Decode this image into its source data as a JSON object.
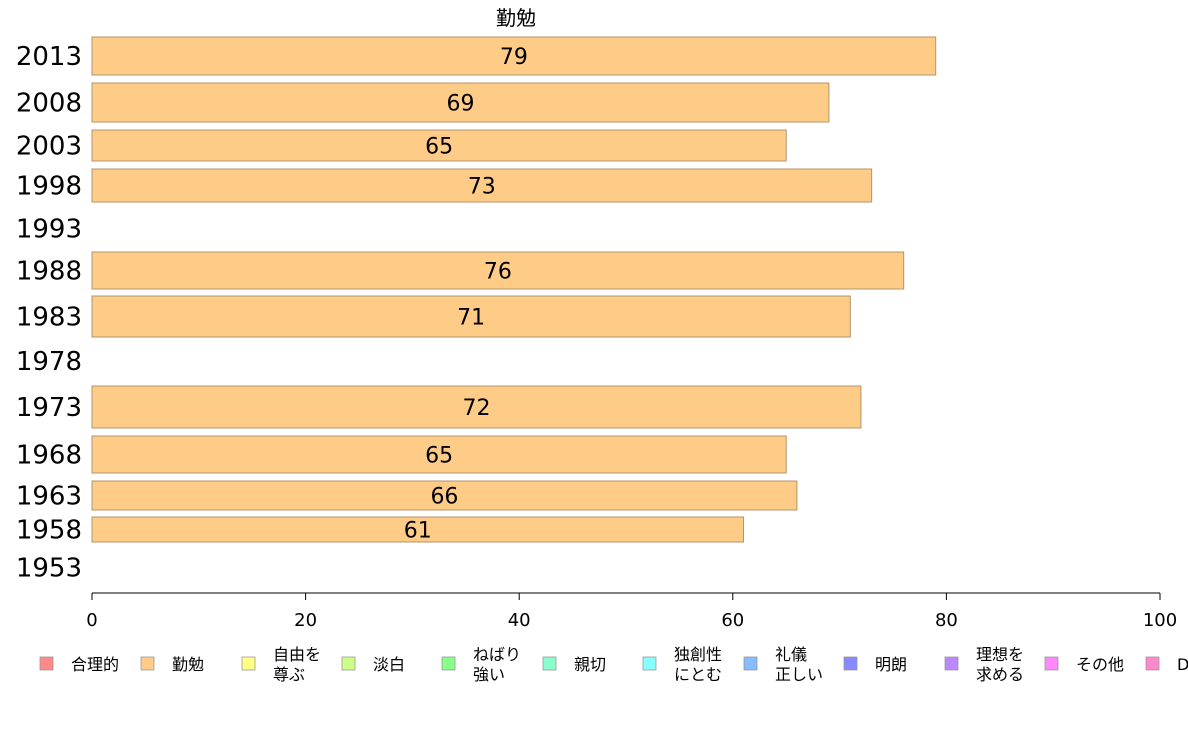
{
  "chart_data": {
    "type": "bar",
    "orientation": "horizontal",
    "title": "勤勉",
    "categories": [
      "2013",
      "2008",
      "2003",
      "1998",
      "1993",
      "1988",
      "1983",
      "1978",
      "1973",
      "1968",
      "1963",
      "1958",
      "1953"
    ],
    "series": [
      {
        "name": "勤勉",
        "values": [
          79,
          69,
          65,
          73,
          null,
          76,
          71,
          null,
          72,
          65,
          66,
          61,
          null
        ]
      }
    ],
    "xlim": [
      0,
      100
    ],
    "xticks": [
      0,
      20,
      40,
      60,
      80,
      100
    ],
    "xlabel": "",
    "ylabel": "",
    "bar_color": "#ffcc88",
    "bar_edge": "#b0956a",
    "legend": {
      "placement": "bottom",
      "items": [
        {
          "label": "合理的",
          "color": "#ff8888"
        },
        {
          "label": "勤勉",
          "color": "#ffcc88"
        },
        {
          "label": "自由を\n尊ぶ",
          "color": "#ffff88"
        },
        {
          "label": "淡白",
          "color": "#ccff88"
        },
        {
          "label": "ねばり\n強い",
          "color": "#88ff88"
        },
        {
          "label": "親切",
          "color": "#88ffcc"
        },
        {
          "label": "独創性\nにとむ",
          "color": "#88ffff"
        },
        {
          "label": "礼儀\n正しい",
          "color": "#88bbff"
        },
        {
          "label": "明朗",
          "color": "#8888ff"
        },
        {
          "label": "理想を\n求める",
          "color": "#bb88ff"
        },
        {
          "label": "その他",
          "color": "#ff88ff"
        },
        {
          "label": "D",
          "color": "#ff88cc"
        }
      ]
    }
  }
}
